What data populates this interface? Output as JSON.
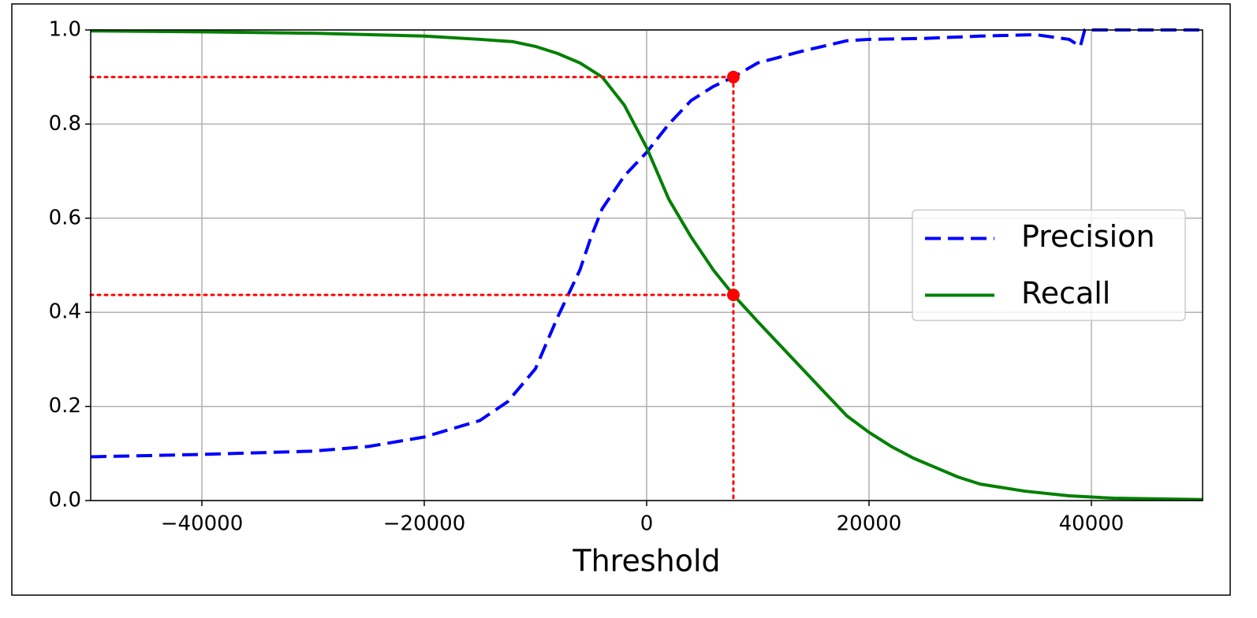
{
  "chart_data": {
    "type": "line",
    "xlabel": "Threshold",
    "xlim": [
      -50000,
      50000
    ],
    "xticks": [
      {
        "value": -40000,
        "label": "−40000"
      },
      {
        "value": -20000,
        "label": "−20000"
      },
      0,
      20000,
      40000
    ],
    "ylim": [
      0,
      1
    ],
    "yticks": [
      {
        "value": 0,
        "label": "0.0"
      },
      0.2,
      0.4,
      0.6,
      0.8,
      {
        "value": 1,
        "label": "1.0"
      }
    ],
    "grid": true,
    "legend": "center right",
    "series": [
      {
        "name": "Precision",
        "color": "blue",
        "style": "dashed",
        "x": [
          -50000,
          -40000,
          -30000,
          -25000,
          -20000,
          -15000,
          -12500,
          -10000,
          -8000,
          -6000,
          -5000,
          -4000,
          -2000,
          0,
          2000,
          4000,
          6000,
          7800,
          10000,
          14000,
          18000,
          20000,
          25000,
          30000,
          35000,
          38000,
          39000,
          39400,
          50000
        ],
        "values": [
          0.093,
          0.098,
          0.105,
          0.115,
          0.135,
          0.17,
          0.21,
          0.28,
          0.39,
          0.49,
          0.56,
          0.62,
          0.69,
          0.74,
          0.8,
          0.85,
          0.88,
          0.9,
          0.93,
          0.955,
          0.977,
          0.98,
          0.982,
          0.987,
          0.99,
          0.98,
          0.965,
          1.0,
          1.0
        ]
      },
      {
        "name": "Recall",
        "color": "green",
        "style": "solid",
        "x": [
          -50000,
          -40000,
          -30000,
          -20000,
          -15000,
          -12000,
          -10000,
          -8000,
          -6000,
          -4000,
          -2000,
          0,
          2000,
          4000,
          6000,
          7800,
          10000,
          12000,
          14000,
          16000,
          18000,
          20000,
          22000,
          24000,
          26000,
          28000,
          30000,
          34000,
          38000,
          42000,
          50000
        ],
        "values": [
          0.998,
          0.996,
          0.993,
          0.987,
          0.98,
          0.975,
          0.965,
          0.95,
          0.93,
          0.9,
          0.84,
          0.75,
          0.64,
          0.56,
          0.49,
          0.437,
          0.38,
          0.33,
          0.28,
          0.23,
          0.18,
          0.145,
          0.115,
          0.09,
          0.07,
          0.05,
          0.035,
          0.02,
          0.01,
          0.005,
          0.002
        ]
      }
    ],
    "marker": {
      "threshold": 7800,
      "precision": 0.9,
      "recall": 0.437,
      "color": "red"
    }
  }
}
